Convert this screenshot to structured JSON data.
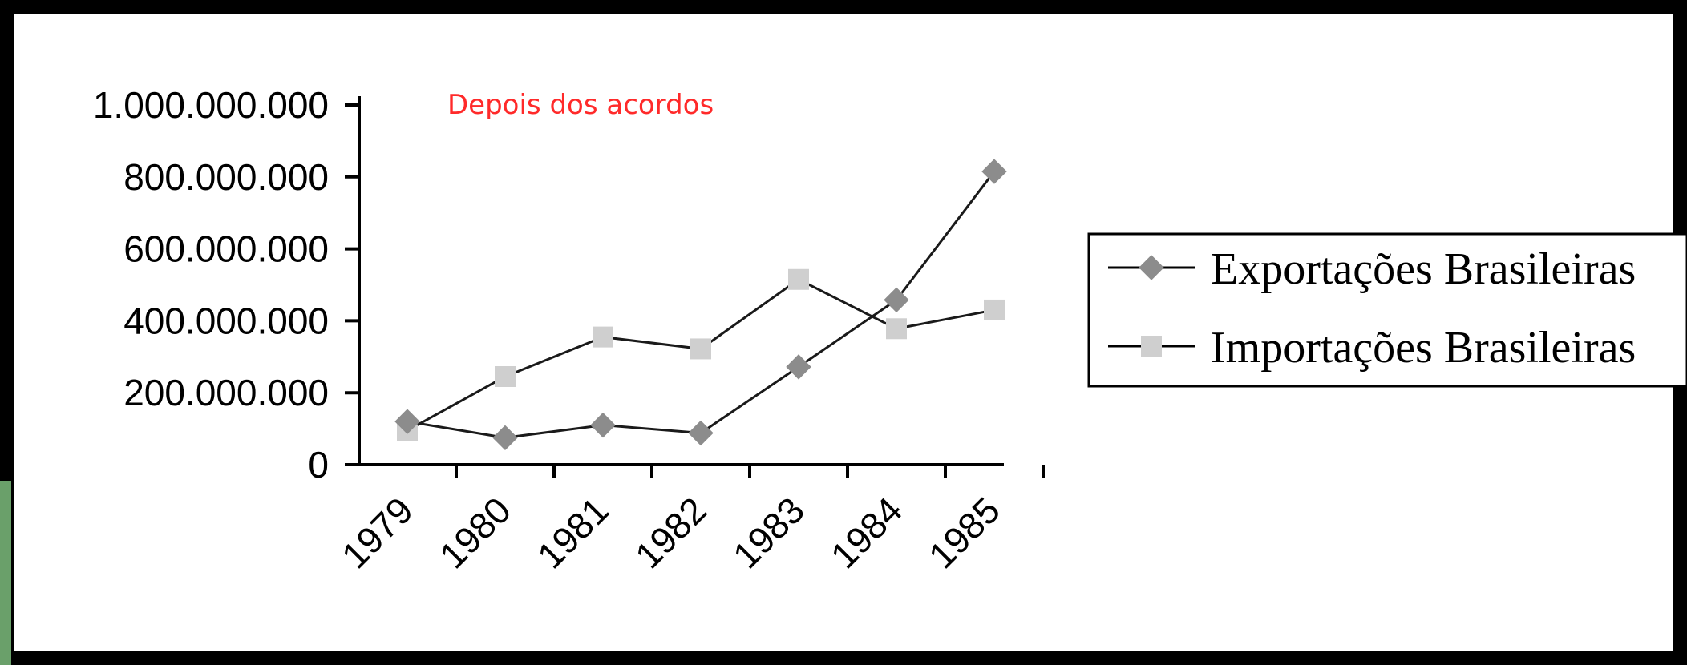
{
  "chart_data": {
    "type": "line",
    "annotation": "Depois dos acordos",
    "annotation_color": "#ff2a2a",
    "categories": [
      "1979",
      "1980",
      "1981",
      "1982",
      "1983",
      "1984",
      "1985"
    ],
    "y_tick_labels": [
      "0",
      "200.000.000",
      "400.000.000",
      "600.000.000",
      "800.000.000",
      "1.000.000.000"
    ],
    "ylim": [
      0,
      1000000000
    ],
    "grid": false,
    "legend_position": "right",
    "series": [
      {
        "name": "Exportações Brasileiras",
        "marker": "diamond",
        "marker_color": "#8c8c8c",
        "values": [
          120000000,
          75000000,
          110000000,
          88000000,
          272000000,
          458000000,
          815000000
        ]
      },
      {
        "name": "Importações Brasileiras",
        "marker": "square",
        "marker_color": "#cfcfcf",
        "values": [
          95000000,
          245000000,
          355000000,
          322000000,
          515000000,
          378000000,
          430000000
        ]
      }
    ]
  }
}
